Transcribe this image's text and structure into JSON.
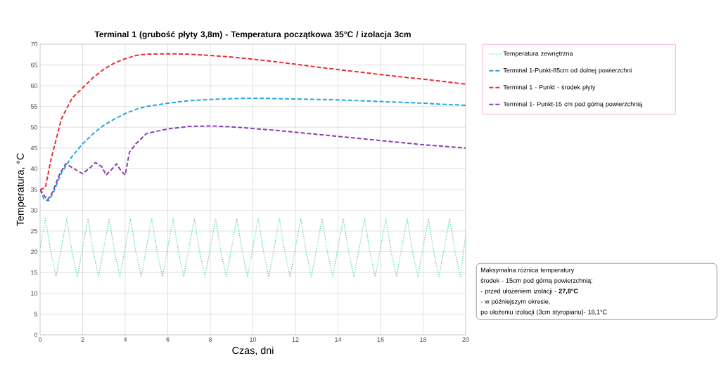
{
  "chart_data": {
    "type": "line",
    "title": "Terminal 1 (grubość płyty 3,8m) - Temperatura początkowa 35°C / izolacja 3cm",
    "xlabel": "Czas, dni",
    "ylabel": "Temperatura, °C",
    "xlim": [
      0,
      20
    ],
    "ylim": [
      0,
      70
    ],
    "xticks": [
      0,
      2,
      4,
      6,
      8,
      10,
      12,
      14,
      16,
      18,
      20
    ],
    "yticks": [
      0,
      5,
      10,
      15,
      20,
      25,
      30,
      35,
      40,
      45,
      50,
      55,
      60,
      65,
      70
    ],
    "grid": true,
    "legend": "right",
    "marker": "none",
    "series": [
      {
        "name": "Temperatura zewnętrzna",
        "color": "#3cc8a0",
        "line_style": "dotted",
        "x": [
          0,
          0.25,
          0.5,
          0.75,
          1,
          1.25,
          1.5,
          1.75,
          2,
          2.25,
          2.5,
          2.75,
          3,
          3.25,
          3.5,
          3.75,
          4,
          4.25,
          4.5,
          4.75,
          5,
          5.25,
          5.5,
          5.75,
          6,
          6.25,
          6.5,
          6.75,
          7,
          7.25,
          7.5,
          7.75,
          8,
          8.25,
          8.5,
          8.75,
          9,
          9.25,
          9.5,
          9.75,
          10,
          10.25,
          10.5,
          10.75,
          11,
          11.25,
          11.5,
          11.75,
          12,
          12.25,
          12.5,
          12.75,
          13,
          13.25,
          13.5,
          13.75,
          14,
          14.25,
          14.5,
          14.75,
          15,
          15.25,
          15.5,
          15.75,
          16,
          16.25,
          16.5,
          16.75,
          17,
          17.25,
          17.5,
          17.75,
          18,
          18.25,
          18.5,
          18.75,
          19,
          19.25,
          19.5,
          19.75,
          20
        ],
        "values": [
          21,
          28,
          20,
          14,
          21,
          28,
          20,
          14,
          21,
          28,
          20,
          14,
          21,
          28,
          20,
          14,
          21,
          28,
          20,
          14,
          21,
          28,
          20,
          14,
          21,
          28,
          20,
          14,
          21,
          28,
          20,
          14,
          21,
          28,
          20,
          14,
          21,
          28,
          20,
          14,
          21,
          28,
          20,
          14,
          21,
          28,
          20,
          14,
          21,
          28,
          20,
          14,
          21,
          28,
          20,
          14,
          21,
          28,
          20,
          14,
          21,
          28,
          20,
          14,
          21,
          28,
          20,
          14,
          21,
          28,
          20,
          14,
          21,
          28,
          20,
          14,
          21,
          28,
          20,
          14,
          24
        ]
      },
      {
        "name": "Terminal 1-Punkt-85cm od dolnej powierzchni",
        "color": "#1fa8e0",
        "line_style": "dashed",
        "x": [
          0,
          0.2,
          0.4,
          0.6,
          1,
          1.5,
          2,
          2.5,
          3,
          3.5,
          4,
          4.5,
          5,
          6,
          7,
          8,
          9,
          10,
          11,
          12,
          13,
          14,
          15,
          16,
          17,
          18,
          19,
          20
        ],
        "values": [
          35,
          32.5,
          32.3,
          34,
          39,
          43,
          46,
          48.5,
          50.5,
          52,
          53.3,
          54.3,
          55,
          55.8,
          56.4,
          56.7,
          56.9,
          57,
          56.9,
          56.8,
          56.7,
          56.6,
          56.4,
          56.2,
          56,
          55.8,
          55.5,
          55.3
        ]
      },
      {
        "name": "Terminal 1 - Punkt - środek płyty",
        "color": "#e8302a",
        "line_style": "dashed",
        "x": [
          0,
          0.25,
          0.5,
          1,
          1.5,
          2,
          2.5,
          3,
          3.5,
          4,
          4.5,
          5,
          6,
          7,
          8,
          9,
          10,
          11,
          12,
          13,
          14,
          15,
          16,
          17,
          18,
          19,
          20
        ],
        "values": [
          35,
          35.5,
          42,
          52,
          57,
          59.5,
          62,
          64,
          65.5,
          66.5,
          67.3,
          67.6,
          67.7,
          67.6,
          67.3,
          66.9,
          66.4,
          65.8,
          65.2,
          64.5,
          63.9,
          63.3,
          62.7,
          62.1,
          61.6,
          61,
          60.4
        ]
      },
      {
        "name": "Terminal 1- Punkt-15 cm pod górną powierzchnią",
        "color": "#8a3fb0",
        "line_style": "dashed",
        "x": [
          0,
          0.2,
          0.35,
          0.6,
          0.9,
          1.2,
          1.5,
          2,
          2.4,
          2.6,
          2.9,
          3.1,
          3.3,
          3.6,
          3.8,
          4,
          4.2,
          4.5,
          5,
          6,
          7,
          8,
          9,
          10,
          11,
          12,
          13,
          14,
          15,
          16,
          17,
          18,
          19,
          20
        ],
        "values": [
          35,
          33.5,
          32.5,
          34.5,
          38.5,
          41.2,
          40.3,
          38.8,
          40.5,
          41.5,
          40.5,
          38.5,
          39.5,
          41.2,
          39.5,
          38.5,
          44,
          46,
          48.5,
          49.6,
          50.2,
          50.3,
          50.1,
          49.7,
          49.3,
          48.8,
          48.3,
          47.8,
          47.3,
          46.8,
          46.3,
          45.8,
          45.4,
          45
        ]
      }
    ],
    "annotations": [
      "Maksymalna różnica temperatury",
      "środek - 15cm pod górną powierzchnią:",
      "- przed ułożeniem izolacji - **27,8°C**",
      "-  w późniejszym okresie,",
      "po ułożeniu izolacji (3cm styropianu)- 18,1°C"
    ]
  }
}
